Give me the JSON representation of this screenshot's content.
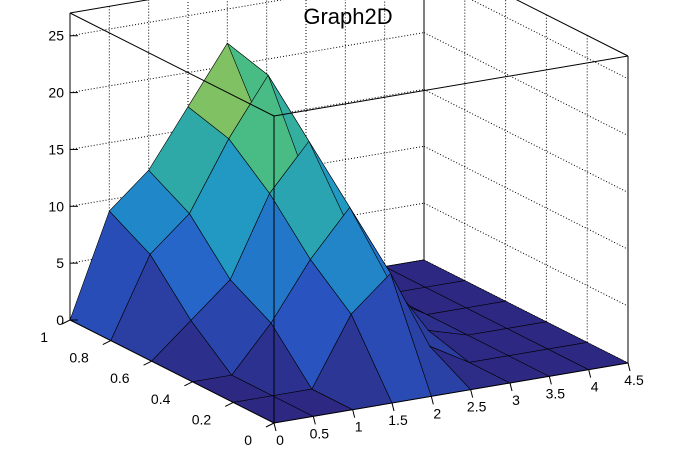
{
  "chart_data": {
    "type": "surface",
    "title": "Graph2D",
    "x_ticks": [
      "0",
      "0.5",
      "1",
      "1.5",
      "2",
      "2.5",
      "3",
      "3.5",
      "4",
      "4.5"
    ],
    "y_ticks": [
      "0",
      "0.2",
      "0.4",
      "0.6",
      "0.8",
      "1"
    ],
    "z_ticks": [
      "0",
      "5",
      "10",
      "15",
      "20",
      "25"
    ],
    "xlim": [
      0,
      4.5
    ],
    "ylim": [
      0,
      1
    ],
    "zlim": [
      0,
      27
    ],
    "grid": true,
    "colormap": "viridis-like (blue to yellow)",
    "grid_x": [
      0,
      0.5,
      1.0,
      1.5,
      2.0,
      2.5,
      3.0,
      3.5,
      4.0,
      4.5
    ],
    "grid_y": [
      0,
      0.2,
      0.4,
      0.6,
      0.8,
      1.0
    ],
    "z_values": [
      [
        0,
        0,
        0,
        0,
        0,
        0,
        0,
        0,
        0,
        0
      ],
      [
        0,
        0,
        0,
        6,
        9,
        2,
        0,
        0,
        0,
        0
      ],
      [
        0,
        0,
        4,
        9,
        13,
        6,
        1,
        0,
        0,
        0
      ],
      [
        0,
        3,
        6,
        13,
        17,
        9,
        2,
        0,
        0,
        0
      ],
      [
        0,
        7,
        10,
        16,
        21,
        11,
        2,
        0,
        0,
        0
      ],
      [
        0,
        9,
        12,
        17,
        22,
        13,
        2,
        0,
        0,
        0
      ]
    ]
  }
}
